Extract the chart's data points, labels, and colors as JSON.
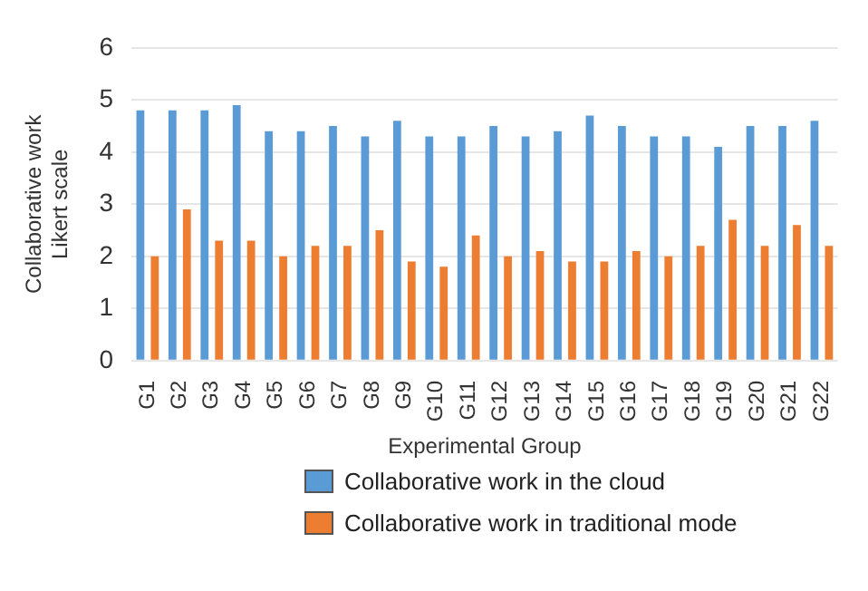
{
  "chart_data": {
    "type": "bar",
    "xlabel": "Experimental Group",
    "ylabel": "Collaborative work\nLikert scale",
    "categories": [
      "G1",
      "G2",
      "G3",
      "G4",
      "G5",
      "G6",
      "G7",
      "G8",
      "G9",
      "G10",
      "G11",
      "G12",
      "G13",
      "G14",
      "G15",
      "G16",
      "G17",
      "G18",
      "G19",
      "G20",
      "G21",
      "G22"
    ],
    "series": [
      {
        "name": "Collaborative work in the cloud",
        "color": "#5b9bd5",
        "values": [
          4.8,
          4.8,
          4.8,
          4.9,
          4.4,
          4.4,
          4.5,
          4.3,
          4.6,
          4.3,
          4.3,
          4.5,
          4.3,
          4.4,
          4.7,
          4.5,
          4.3,
          4.3,
          4.1,
          4.5,
          4.5,
          4.6
        ]
      },
      {
        "name": "Collaborative work in traditional mode",
        "color": "#ed7d31",
        "values": [
          2.0,
          2.9,
          2.3,
          2.3,
          2.0,
          2.2,
          2.2,
          2.5,
          1.9,
          1.8,
          2.4,
          2.0,
          2.1,
          1.9,
          1.9,
          2.1,
          2.0,
          2.2,
          2.7,
          2.2,
          2.6,
          2.2
        ]
      }
    ],
    "ylim": [
      0,
      6
    ],
    "yticks": [
      0,
      1,
      2,
      3,
      4,
      5,
      6
    ],
    "grid": "y",
    "legend": "bottom"
  }
}
